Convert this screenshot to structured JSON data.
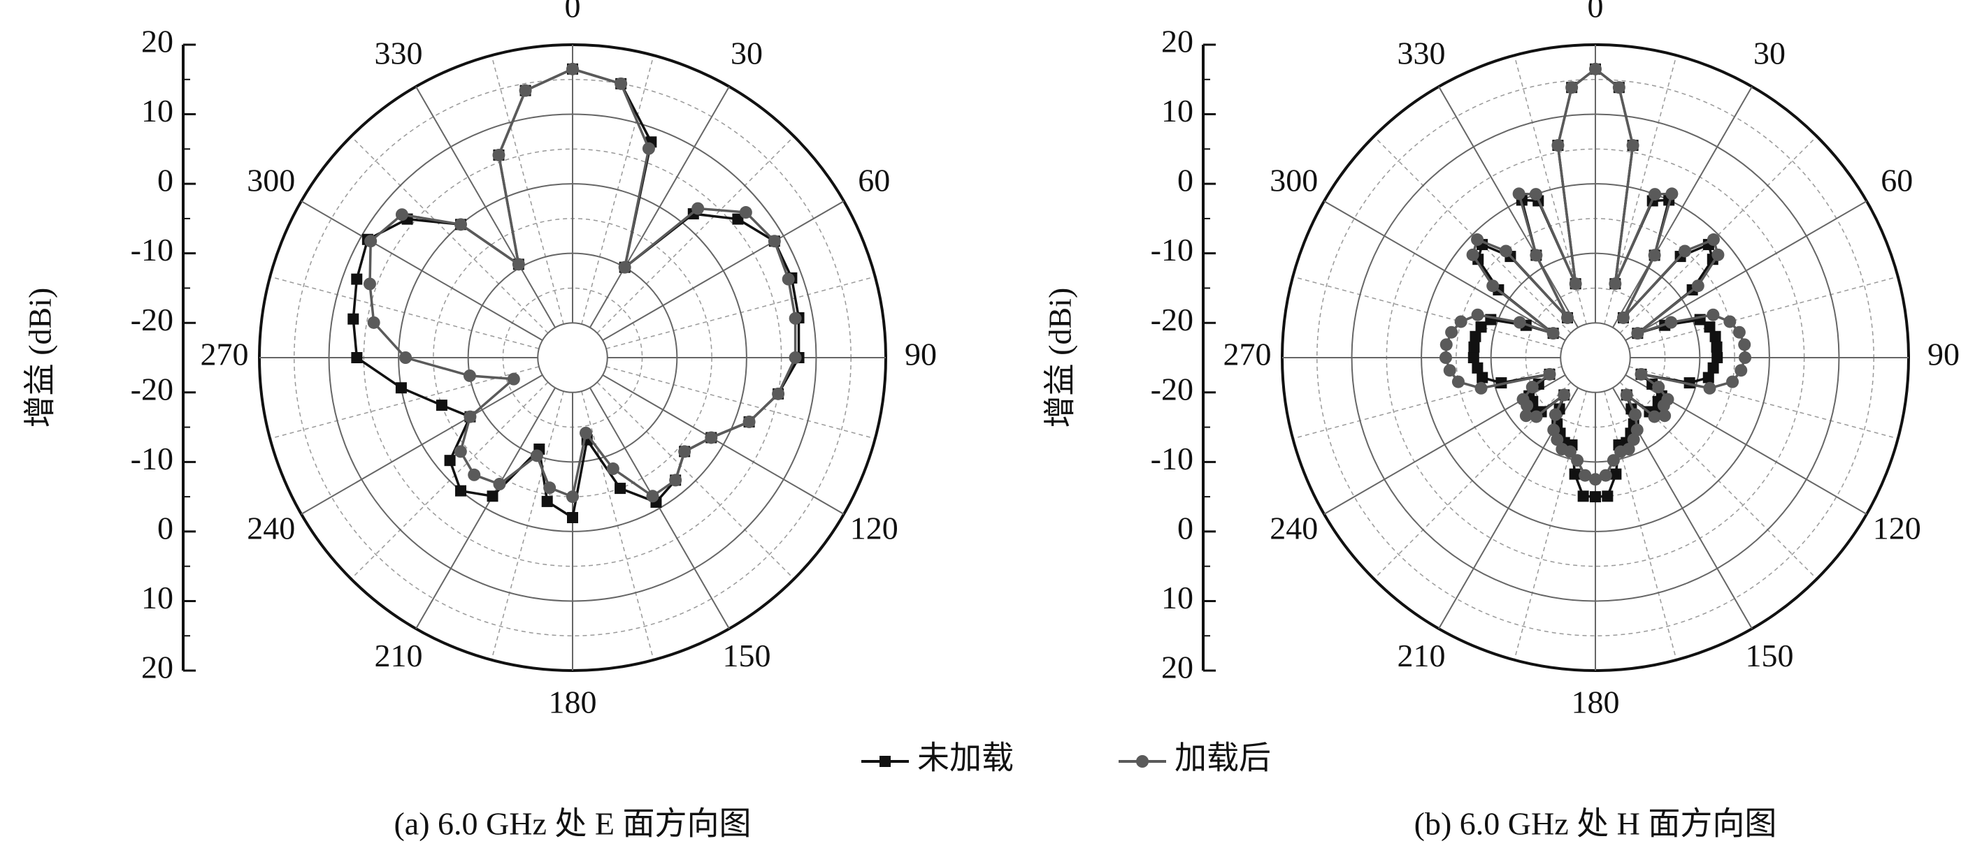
{
  "chart_data": [
    {
      "type": "polar",
      "title": "(a) 6.0 GHz 处 E 面方向图",
      "ylabel": "增益 (dBi)",
      "rlim": [
        -25,
        20
      ],
      "rticks": [
        -20,
        -10,
        0,
        10,
        20
      ],
      "thetaticks": [
        0,
        30,
        60,
        90,
        120,
        150,
        180,
        210,
        240,
        270,
        300,
        330
      ],
      "theta": [
        0,
        10,
        20,
        30,
        40,
        50,
        60,
        70,
        80,
        90,
        100,
        110,
        120,
        130,
        140,
        150,
        160,
        170,
        180,
        190,
        200,
        210,
        220,
        230,
        240,
        250,
        260,
        270,
        280,
        290,
        300,
        310,
        320,
        330,
        340,
        350
      ],
      "series": [
        {
          "name": "未加载",
          "color": "#111111",
          "marker": "square",
          "values": [
            16.5,
            15,
            8,
            -10,
            2,
            6,
            8.5,
            8.5,
            8,
            7.5,
            5,
            2,
            -2,
            -4,
            -2,
            -1,
            -5,
            -13,
            -2,
            -4,
            -11,
            -2,
            0,
            -2,
            -8,
            -5,
            0,
            6,
            7,
            8,
            9,
            6,
            0,
            -9.5,
            6,
            14
          ]
        },
        {
          "name": "加载后",
          "color": "#5a5a5a",
          "marker": "circle",
          "values": [
            16.5,
            15,
            7,
            -10,
            3,
            7.5,
            8.5,
            8,
            7.5,
            7,
            5,
            2,
            -2,
            -4,
            -2,
            -2,
            -8,
            -14,
            -5,
            -6,
            -10,
            -4,
            -3,
            -4,
            -8,
            -16,
            -10,
            -1,
            4,
            6,
            8.5,
            7,
            0,
            -9.5,
            6,
            14
          ]
        }
      ]
    },
    {
      "type": "polar",
      "title": "(b) 6.0 GHz 处 H 面方向图",
      "ylabel": "增益 (dBi)",
      "rlim": [
        -25,
        20
      ],
      "rticks": [
        -20,
        -10,
        0,
        10,
        20
      ],
      "thetaticks": [
        0,
        30,
        60,
        90,
        120,
        150,
        180,
        210,
        240,
        270,
        300,
        330
      ],
      "theta": [
        0,
        5,
        10,
        15,
        20,
        25,
        30,
        35,
        40,
        45,
        50,
        55,
        60,
        65,
        70,
        75,
        80,
        85,
        90,
        95,
        100,
        105,
        110,
        115,
        120,
        125,
        130,
        135,
        140,
        145,
        150,
        155,
        160,
        165,
        170,
        175,
        180,
        185,
        190,
        195,
        200,
        205,
        210,
        215,
        220,
        225,
        230,
        235,
        240,
        245,
        250,
        255,
        260,
        265,
        270,
        275,
        280,
        285,
        290,
        295,
        300,
        305,
        310,
        315,
        320,
        325,
        330,
        335,
        340,
        345,
        350,
        355
      ],
      "series": [
        {
          "name": "未加载",
          "color": "#111111",
          "marker": "square",
          "values": [
            16.5,
            14,
            6,
            -14,
            -1,
            0,
            -8,
            -18,
            -6,
            -2,
            -3,
            -8,
            -18,
            -14,
            -9,
            -8,
            -7.5,
            -7.5,
            -7.5,
            -8,
            -8.5,
            -11,
            -18,
            -16,
            -14,
            -14,
            -13,
            -14,
            -18,
            -16,
            -14,
            -13,
            -12,
            -12,
            -8,
            -5,
            -5,
            -5,
            -8,
            -12,
            -12,
            -13,
            -14,
            -16,
            -18,
            -14,
            -13,
            -14,
            -14,
            -16,
            -18,
            -11,
            -8.5,
            -8,
            -7.5,
            -7.5,
            -7.5,
            -8,
            -9,
            -14,
            -18,
            -8,
            -3,
            -2,
            -6,
            -18,
            -8,
            0,
            -1,
            -14,
            6,
            14
          ]
        },
        {
          "name": "加载后",
          "color": "#5a5a5a",
          "marker": "circle",
          "values": [
            16.5,
            14,
            6,
            -14,
            0,
            1,
            -8,
            -18,
            -5,
            -1,
            -2,
            -7,
            -18,
            -13,
            -7,
            -5,
            -4,
            -3.5,
            -3.5,
            -4,
            -5,
            -8,
            -18,
            -15,
            -13,
            -13,
            -12,
            -13,
            -18,
            -15,
            -13,
            -12,
            -11,
            -11,
            -10,
            -8,
            -7.5,
            -8,
            -10,
            -11,
            -11,
            -12,
            -13,
            -15,
            -18,
            -13,
            -12,
            -13,
            -13,
            -15,
            -18,
            -8,
            -5,
            -4,
            -3.5,
            -3.5,
            -4,
            -5,
            -7,
            -13,
            -18,
            -7,
            -2,
            -1,
            -5,
            -18,
            -8,
            1,
            0,
            -14,
            6,
            14
          ]
        }
      ]
    }
  ]
}
